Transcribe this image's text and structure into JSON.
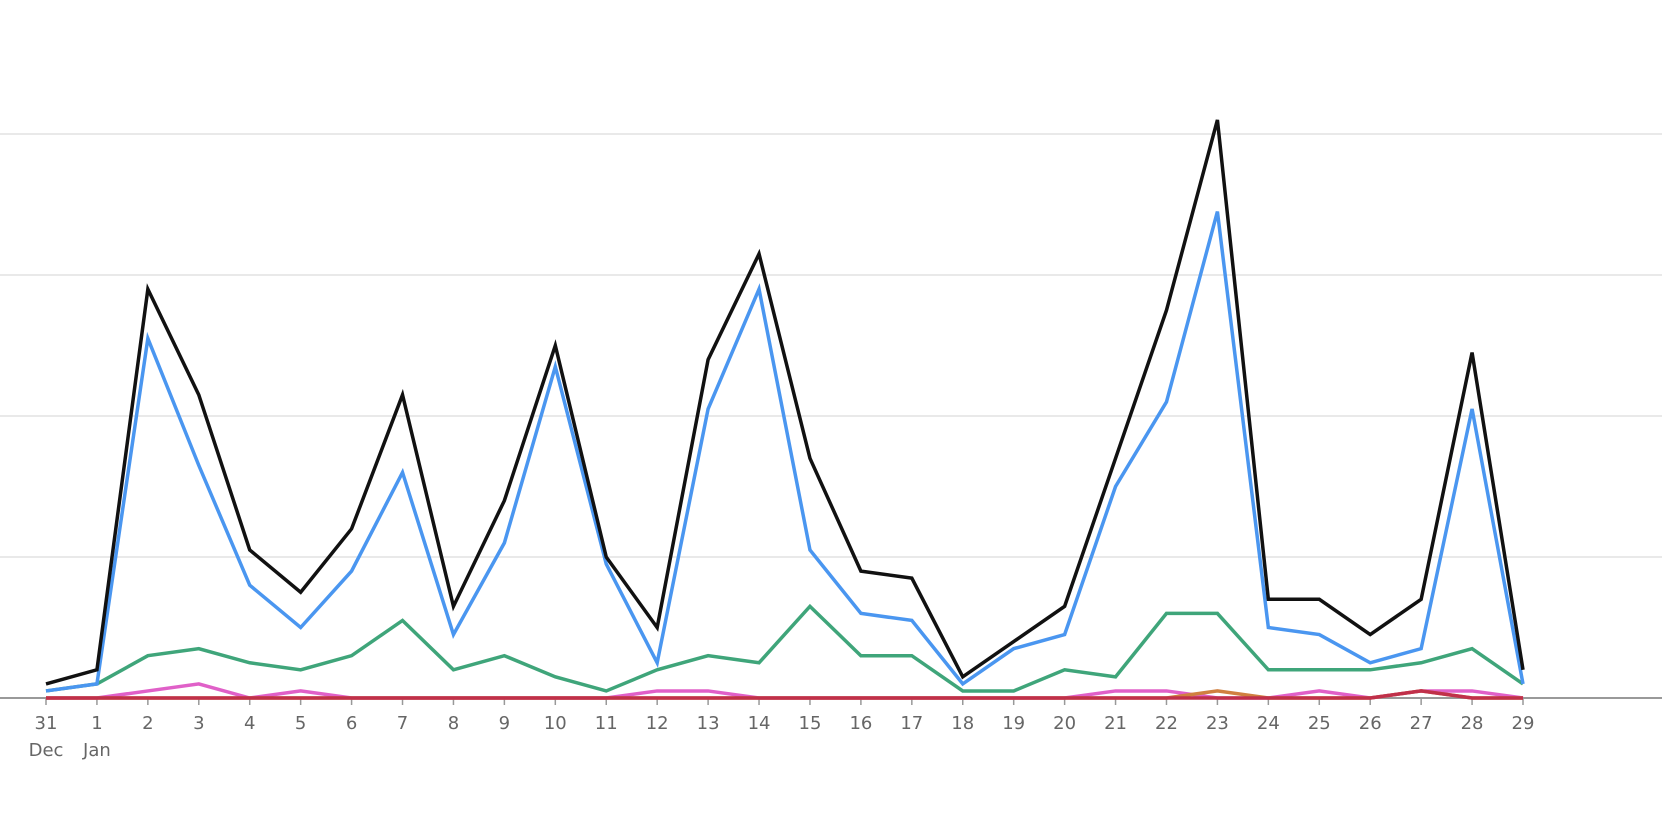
{
  "chart_data": {
    "type": "line",
    "categories": [
      "31",
      "1",
      "2",
      "3",
      "4",
      "5",
      "6",
      "7",
      "8",
      "9",
      "10",
      "11",
      "12",
      "13",
      "14",
      "15",
      "16",
      "17",
      "18",
      "19",
      "20",
      "21",
      "22",
      "23",
      "24",
      "25",
      "26",
      "27",
      "28",
      "29"
    ],
    "months": [
      "Dec",
      "Jan",
      null,
      null,
      null,
      null,
      null,
      null,
      null,
      null,
      null,
      null,
      null,
      null,
      null,
      null,
      null,
      null,
      null,
      null,
      null,
      null,
      null,
      null,
      null,
      null,
      null,
      null,
      null,
      null
    ],
    "ylim": [
      0,
      100
    ],
    "yticks": [
      0,
      20,
      40,
      60,
      80
    ],
    "grid": true,
    "series": [
      {
        "color": "#e060c8",
        "values": [
          0,
          0,
          1,
          2,
          0,
          1,
          0,
          0,
          0,
          0,
          0,
          0,
          1,
          1,
          0,
          0,
          0,
          0,
          0,
          0,
          0,
          1,
          1,
          0,
          0,
          1,
          0,
          1,
          1,
          0
        ]
      },
      {
        "color": "#d08040",
        "values": [
          0,
          0,
          0,
          0,
          0,
          0,
          0,
          0,
          0,
          0,
          0,
          0,
          0,
          0,
          0,
          0,
          0,
          0,
          0,
          0,
          0,
          0,
          0,
          1,
          0,
          0,
          0,
          1,
          0,
          0
        ]
      },
      {
        "color": "#c0304a",
        "values": [
          0,
          0,
          0,
          0,
          0,
          0,
          0,
          0,
          0,
          0,
          0,
          0,
          0,
          0,
          0,
          0,
          0,
          0,
          0,
          0,
          0,
          0,
          0,
          0,
          0,
          0,
          0,
          1,
          0,
          0
        ]
      },
      {
        "color": "#3fa57a",
        "values": [
          1,
          2,
          6,
          7,
          5,
          4,
          6,
          11,
          4,
          6,
          3,
          1,
          4,
          6,
          5,
          13,
          6,
          6,
          1,
          1,
          4,
          3,
          12,
          12,
          4,
          4,
          4,
          5,
          7,
          2
        ]
      },
      {
        "color": "#4a96f0",
        "values": [
          1,
          2,
          51,
          33,
          16,
          10,
          18,
          32,
          9,
          22,
          47,
          19,
          5,
          41,
          58,
          21,
          12,
          11,
          2,
          7,
          9,
          30,
          42,
          69,
          10,
          9,
          5,
          7,
          41,
          2
        ]
      },
      {
        "color": "#111111",
        "values": [
          2,
          4,
          58,
          43,
          21,
          15,
          24,
          43,
          13,
          28,
          50,
          20,
          10,
          48,
          63,
          34,
          18,
          17,
          3,
          8,
          13,
          34,
          55,
          82,
          14,
          14,
          9,
          14,
          49,
          4
        ]
      }
    ]
  }
}
